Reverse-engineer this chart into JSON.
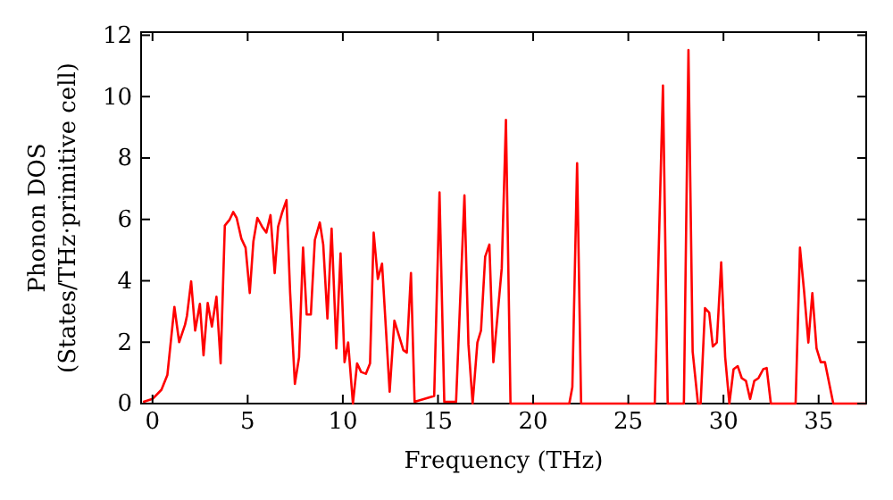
{
  "chart_data": {
    "type": "line",
    "xlabel": "Frequency (THz)",
    "ylabel": "Phonon DOS\n(States/THz·primitive cell)",
    "xlim": [
      -0.6,
      37.5
    ],
    "ylim": [
      0,
      12.1
    ],
    "xticks": [
      0,
      5,
      10,
      15,
      20,
      25,
      30,
      35
    ],
    "yticks": [
      0,
      2,
      4,
      6,
      8,
      10,
      12
    ],
    "grid": false,
    "series": [
      {
        "color": "#ff0000",
        "x": [
          -0.5,
          0,
          0.47,
          0.78,
          1.15,
          1.4,
          1.71,
          1.81,
          2.03,
          2.24,
          2.49,
          2.68,
          2.9,
          3.12,
          3.36,
          3.58,
          3.8,
          4.05,
          4.24,
          4.42,
          4.67,
          4.89,
          5.11,
          5.3,
          5.51,
          5.76,
          5.98,
          6.2,
          6.42,
          6.6,
          6.82,
          7.04,
          7.23,
          7.48,
          7.7,
          7.91,
          8.1,
          8.32,
          8.53,
          8.79,
          8.97,
          9.19,
          9.41,
          9.66,
          9.88,
          10.09,
          10.28,
          10.53,
          10.75,
          10.96,
          11.21,
          11.43,
          11.62,
          11.84,
          12.06,
          12.46,
          12.71,
          13.18,
          13.36,
          13.58,
          13.77,
          14.8,
          15.08,
          15.33,
          15.95,
          16.39,
          16.6,
          16.82,
          17.07,
          17.26,
          17.48,
          17.7,
          17.91,
          18.35,
          18.57,
          18.81,
          21.9,
          22.06,
          22.31,
          22.52,
          26.39,
          26.82,
          27.07,
          27.92,
          28.16,
          28.38,
          28.66,
          28.8,
          29.03,
          29.25,
          29.44,
          29.65,
          29.88,
          30.09,
          30.31,
          30.53,
          30.75,
          30.96,
          31.18,
          31.4,
          31.62,
          31.84,
          32.09,
          32.27,
          32.49,
          33.79,
          34.02,
          34.24,
          34.46,
          34.67,
          34.89,
          35.11,
          35.33,
          35.77,
          37.5
        ],
        "values": [
          0.05,
          0.15,
          0.45,
          0.93,
          3.15,
          2.0,
          2.57,
          2.86,
          3.98,
          2.38,
          3.25,
          1.57,
          3.28,
          2.51,
          3.48,
          1.31,
          5.8,
          5.99,
          6.24,
          6.05,
          5.37,
          5.08,
          3.6,
          5.28,
          6.05,
          5.76,
          5.57,
          6.14,
          4.25,
          5.76,
          6.24,
          6.63,
          3.63,
          0.64,
          1.51,
          5.08,
          2.9,
          2.9,
          5.33,
          5.9,
          5.18,
          2.77,
          5.7,
          1.8,
          4.89,
          1.35,
          1.99,
          0,
          1.31,
          1.03,
          0.97,
          1.31,
          5.57,
          4.06,
          4.56,
          0.39,
          2.7,
          1.74,
          1.66,
          4.25,
          0.06,
          0.25,
          6.88,
          0.06,
          0.06,
          6.78,
          1.93,
          0,
          1.99,
          2.38,
          4.79,
          5.18,
          1.35,
          4.41,
          9.24,
          0,
          0,
          0.54,
          7.83,
          0,
          0,
          10.36,
          0,
          0,
          11.52,
          1.7,
          0,
          0,
          3.11,
          2.96,
          1.86,
          1.99,
          4.6,
          1.51,
          0,
          1.12,
          1.22,
          0.83,
          0.74,
          0.15,
          0.74,
          0.83,
          1.12,
          1.16,
          0,
          0,
          5.08,
          3.63,
          1.99,
          3.6,
          1.8,
          1.35,
          1.35,
          0,
          0
        ]
      }
    ]
  }
}
